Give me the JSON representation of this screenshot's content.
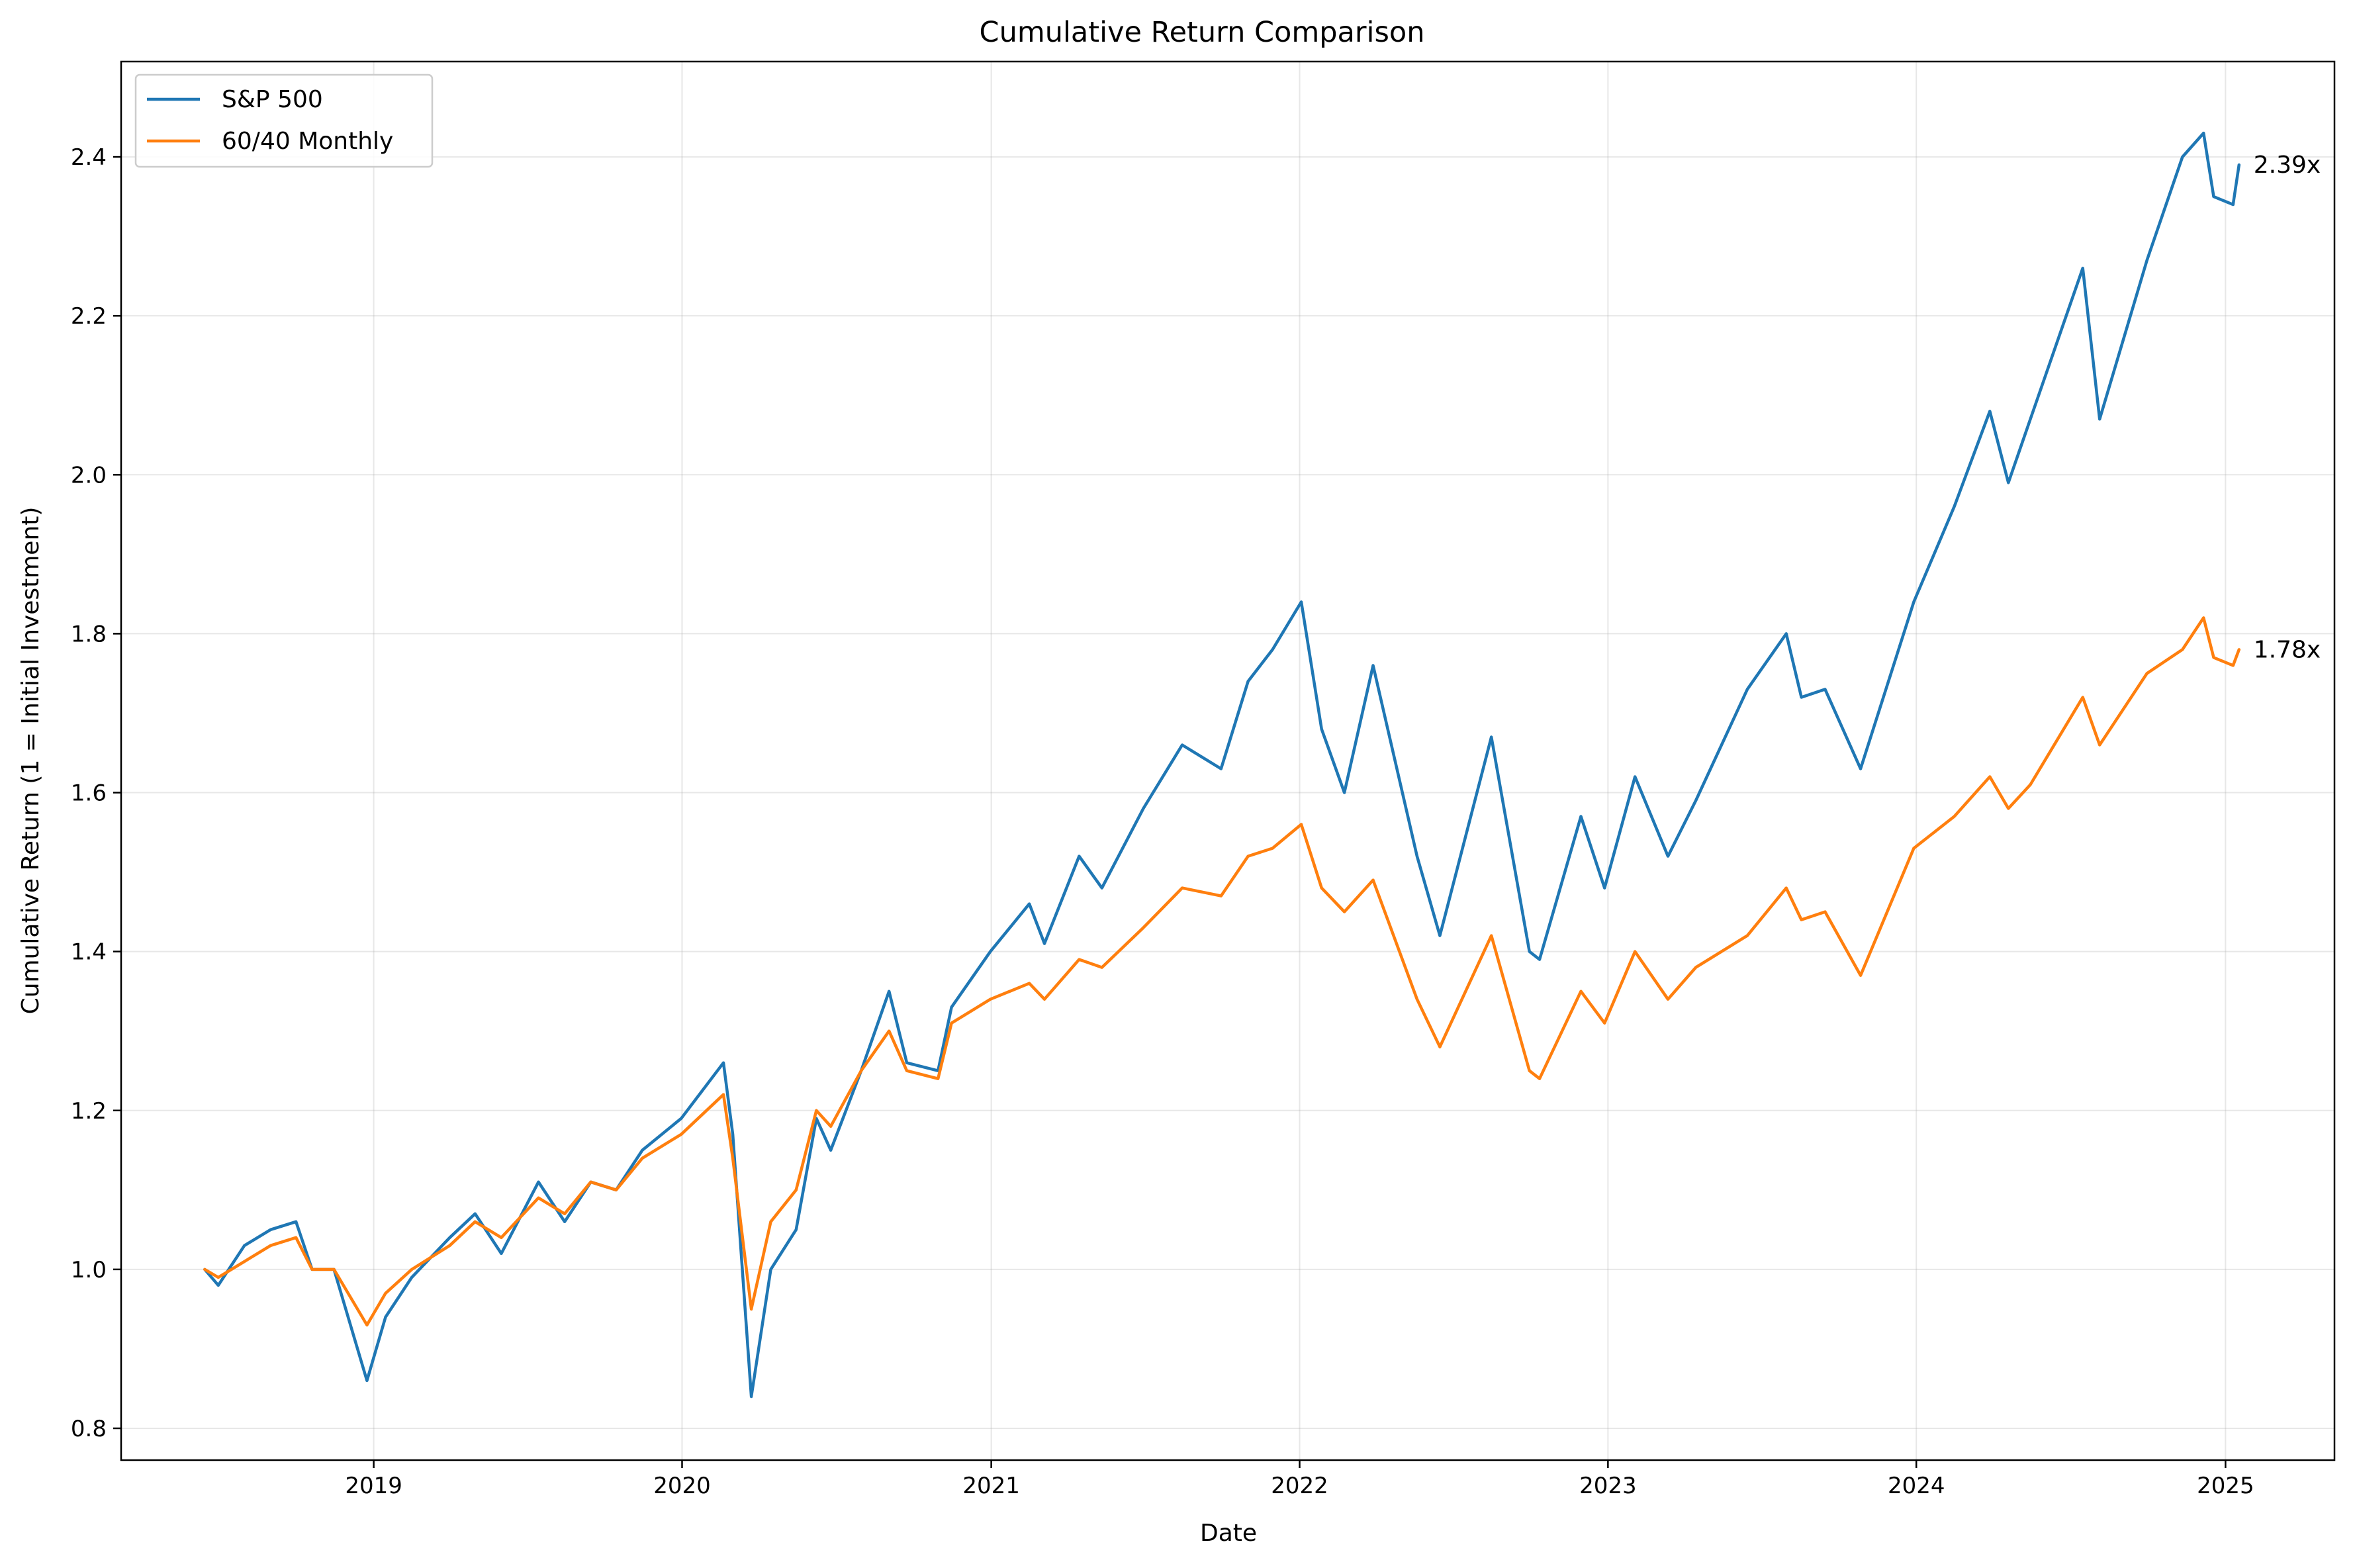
{
  "chart_data": {
    "type": "line",
    "title": "Cumulative Return Comparison",
    "xlabel": "Date",
    "ylabel": "Cumulative Return (1 = Initial Investment)",
    "xlim": [
      "2018-03-08",
      "2025-05-10"
    ],
    "ylim": [
      0.76,
      2.52
    ],
    "x_ticks": [
      "2019-01-01",
      "2020-01-01",
      "2021-01-01",
      "2022-01-01",
      "2023-01-01",
      "2024-01-01",
      "2025-01-01"
    ],
    "x_tick_labels": [
      "2019",
      "2020",
      "2021",
      "2022",
      "2023",
      "2024",
      "2025"
    ],
    "y_ticks": [
      0.8,
      1.0,
      1.2,
      1.4,
      1.6,
      1.8,
      2.0,
      2.2,
      2.4
    ],
    "y_tick_labels": [
      "0.8",
      "1.0",
      "1.2",
      "1.4",
      "1.6",
      "1.8",
      "2.0",
      "2.2",
      "2.4"
    ],
    "grid": true,
    "legend_position": "top-left",
    "series": [
      {
        "name": "S&P 500",
        "color": "#1f77b4",
        "end_label": "2.39x",
        "points": [
          [
            "2018-06-15",
            1.0
          ],
          [
            "2018-07-01",
            0.98
          ],
          [
            "2018-08-01",
            1.03
          ],
          [
            "2018-09-01",
            1.05
          ],
          [
            "2018-10-01",
            1.06
          ],
          [
            "2018-10-20",
            1.0
          ],
          [
            "2018-11-15",
            1.0
          ],
          [
            "2018-12-24",
            0.86
          ],
          [
            "2019-01-15",
            0.94
          ],
          [
            "2019-02-15",
            0.99
          ],
          [
            "2019-04-01",
            1.04
          ],
          [
            "2019-05-01",
            1.07
          ],
          [
            "2019-06-01",
            1.02
          ],
          [
            "2019-07-15",
            1.11
          ],
          [
            "2019-08-15",
            1.06
          ],
          [
            "2019-09-15",
            1.11
          ],
          [
            "2019-10-15",
            1.1
          ],
          [
            "2019-11-15",
            1.15
          ],
          [
            "2019-12-31",
            1.19
          ],
          [
            "2020-02-19",
            1.26
          ],
          [
            "2020-03-01",
            1.17
          ],
          [
            "2020-03-23",
            0.84
          ],
          [
            "2020-04-15",
            1.0
          ],
          [
            "2020-05-15",
            1.05
          ],
          [
            "2020-06-08",
            1.19
          ],
          [
            "2020-06-25",
            1.15
          ],
          [
            "2020-07-31",
            1.25
          ],
          [
            "2020-09-02",
            1.35
          ],
          [
            "2020-09-23",
            1.26
          ],
          [
            "2020-10-30",
            1.25
          ],
          [
            "2020-11-15",
            1.33
          ],
          [
            "2020-12-31",
            1.4
          ],
          [
            "2021-02-15",
            1.46
          ],
          [
            "2021-03-05",
            1.41
          ],
          [
            "2021-04-15",
            1.52
          ],
          [
            "2021-05-12",
            1.48
          ],
          [
            "2021-06-30",
            1.58
          ],
          [
            "2021-08-15",
            1.66
          ],
          [
            "2021-09-30",
            1.63
          ],
          [
            "2021-11-01",
            1.74
          ],
          [
            "2021-11-30",
            1.78
          ],
          [
            "2022-01-03",
            1.84
          ],
          [
            "2022-01-27",
            1.68
          ],
          [
            "2022-02-23",
            1.6
          ],
          [
            "2022-03-29",
            1.76
          ],
          [
            "2022-05-20",
            1.52
          ],
          [
            "2022-06-16",
            1.42
          ],
          [
            "2022-08-16",
            1.67
          ],
          [
            "2022-09-30",
            1.4
          ],
          [
            "2022-10-12",
            1.39
          ],
          [
            "2022-11-30",
            1.57
          ],
          [
            "2022-12-28",
            1.48
          ],
          [
            "2023-02-02",
            1.62
          ],
          [
            "2023-03-13",
            1.52
          ],
          [
            "2023-04-15",
            1.59
          ],
          [
            "2023-06-15",
            1.73
          ],
          [
            "2023-07-31",
            1.8
          ],
          [
            "2023-08-18",
            1.72
          ],
          [
            "2023-09-15",
            1.73
          ],
          [
            "2023-10-27",
            1.63
          ],
          [
            "2023-12-29",
            1.84
          ],
          [
            "2024-02-15",
            1.96
          ],
          [
            "2024-03-28",
            2.08
          ],
          [
            "2024-04-19",
            1.99
          ],
          [
            "2024-05-15",
            2.07
          ],
          [
            "2024-07-16",
            2.26
          ],
          [
            "2024-08-05",
            2.07
          ],
          [
            "2024-09-30",
            2.27
          ],
          [
            "2024-11-11",
            2.4
          ],
          [
            "2024-12-06",
            2.43
          ],
          [
            "2024-12-18",
            2.35
          ],
          [
            "2025-01-10",
            2.34
          ],
          [
            "2025-01-17",
            2.39
          ]
        ]
      },
      {
        "name": "60/40 Monthly",
        "color": "#ff7f0e",
        "end_label": "1.78x",
        "points": [
          [
            "2018-06-15",
            1.0
          ],
          [
            "2018-07-01",
            0.99
          ],
          [
            "2018-08-01",
            1.01
          ],
          [
            "2018-09-01",
            1.03
          ],
          [
            "2018-10-01",
            1.04
          ],
          [
            "2018-10-20",
            1.0
          ],
          [
            "2018-11-15",
            1.0
          ],
          [
            "2018-12-24",
            0.93
          ],
          [
            "2019-01-15",
            0.97
          ],
          [
            "2019-02-15",
            1.0
          ],
          [
            "2019-04-01",
            1.03
          ],
          [
            "2019-05-01",
            1.06
          ],
          [
            "2019-06-01",
            1.04
          ],
          [
            "2019-07-15",
            1.09
          ],
          [
            "2019-08-15",
            1.07
          ],
          [
            "2019-09-15",
            1.11
          ],
          [
            "2019-10-15",
            1.1
          ],
          [
            "2019-11-15",
            1.14
          ],
          [
            "2019-12-31",
            1.17
          ],
          [
            "2020-02-19",
            1.22
          ],
          [
            "2020-03-01",
            1.14
          ],
          [
            "2020-03-23",
            0.95
          ],
          [
            "2020-04-15",
            1.06
          ],
          [
            "2020-05-15",
            1.1
          ],
          [
            "2020-06-08",
            1.2
          ],
          [
            "2020-06-25",
            1.18
          ],
          [
            "2020-07-31",
            1.25
          ],
          [
            "2020-09-02",
            1.3
          ],
          [
            "2020-09-23",
            1.25
          ],
          [
            "2020-10-30",
            1.24
          ],
          [
            "2020-11-15",
            1.31
          ],
          [
            "2020-12-31",
            1.34
          ],
          [
            "2021-02-15",
            1.36
          ],
          [
            "2021-03-05",
            1.34
          ],
          [
            "2021-04-15",
            1.39
          ],
          [
            "2021-05-12",
            1.38
          ],
          [
            "2021-06-30",
            1.43
          ],
          [
            "2021-08-15",
            1.48
          ],
          [
            "2021-09-30",
            1.47
          ],
          [
            "2021-11-01",
            1.52
          ],
          [
            "2021-11-30",
            1.53
          ],
          [
            "2022-01-03",
            1.56
          ],
          [
            "2022-01-27",
            1.48
          ],
          [
            "2022-02-23",
            1.45
          ],
          [
            "2022-03-29",
            1.49
          ],
          [
            "2022-05-20",
            1.34
          ],
          [
            "2022-06-16",
            1.28
          ],
          [
            "2022-08-16",
            1.42
          ],
          [
            "2022-09-30",
            1.25
          ],
          [
            "2022-10-12",
            1.24
          ],
          [
            "2022-11-30",
            1.35
          ],
          [
            "2022-12-28",
            1.31
          ],
          [
            "2023-02-02",
            1.4
          ],
          [
            "2023-03-13",
            1.34
          ],
          [
            "2023-04-15",
            1.38
          ],
          [
            "2023-06-15",
            1.42
          ],
          [
            "2023-07-31",
            1.48
          ],
          [
            "2023-08-18",
            1.44
          ],
          [
            "2023-09-15",
            1.45
          ],
          [
            "2023-10-27",
            1.37
          ],
          [
            "2023-12-29",
            1.53
          ],
          [
            "2024-02-15",
            1.57
          ],
          [
            "2024-03-28",
            1.62
          ],
          [
            "2024-04-19",
            1.58
          ],
          [
            "2024-05-15",
            1.61
          ],
          [
            "2024-07-16",
            1.72
          ],
          [
            "2024-08-05",
            1.66
          ],
          [
            "2024-09-30",
            1.75
          ],
          [
            "2024-11-11",
            1.78
          ],
          [
            "2024-12-06",
            1.82
          ],
          [
            "2024-12-18",
            1.77
          ],
          [
            "2025-01-10",
            1.76
          ],
          [
            "2025-01-17",
            1.78
          ]
        ]
      }
    ]
  }
}
